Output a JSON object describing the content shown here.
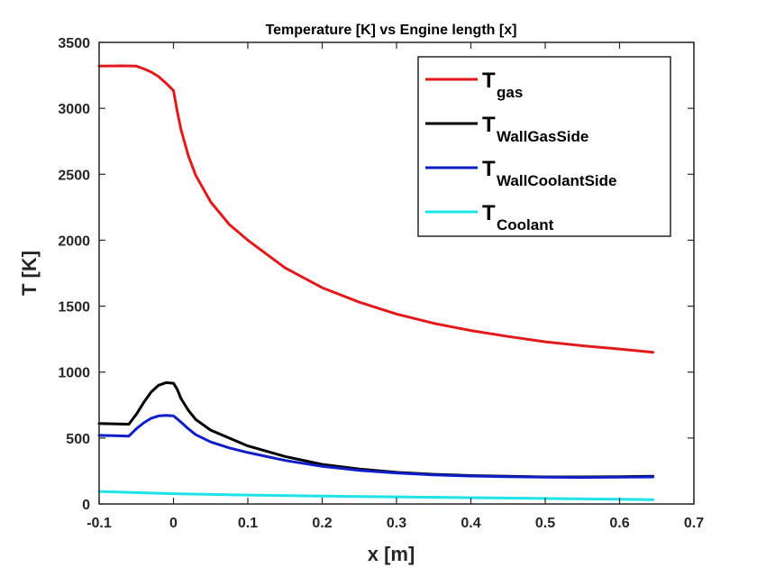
{
  "chart_data": {
    "type": "line",
    "title": "Temperature [K] vs Engine length [x]",
    "xlabel": "x [m]",
    "ylabel": "T [K]",
    "xlim": [
      -0.1,
      0.7
    ],
    "ylim": [
      0,
      3500
    ],
    "xticks": [
      -0.1,
      0,
      0.1,
      0.2,
      0.3,
      0.4,
      0.5,
      0.6,
      0.7
    ],
    "yticks": [
      0,
      500,
      1000,
      1500,
      2000,
      2500,
      3000,
      3500
    ],
    "xtick_labels": [
      "-0.1",
      "0",
      "0.1",
      "0.2",
      "0.3",
      "0.4",
      "0.5",
      "0.6",
      "0.7"
    ],
    "ytick_labels": [
      "0",
      "500",
      "1000",
      "1500",
      "2000",
      "2500",
      "3000",
      "3500"
    ],
    "grid": false,
    "legend_position": "top-right",
    "series": [
      {
        "name": "T",
        "subscript": "gas",
        "color": "#e31a1c",
        "x": [
          -0.1,
          -0.07,
          -0.05,
          -0.04,
          -0.03,
          -0.02,
          -0.01,
          0,
          0.005,
          0.01,
          0.02,
          0.03,
          0.05,
          0.075,
          0.1,
          0.15,
          0.2,
          0.25,
          0.3,
          0.35,
          0.4,
          0.45,
          0.5,
          0.55,
          0.6,
          0.645
        ],
        "y": [
          3320,
          3322,
          3320,
          3300,
          3275,
          3240,
          3190,
          3135,
          2980,
          2840,
          2640,
          2490,
          2290,
          2120,
          2000,
          1790,
          1640,
          1530,
          1440,
          1370,
          1315,
          1270,
          1230,
          1200,
          1175,
          1150
        ]
      },
      {
        "name": "T",
        "subscript": "WallGasSide",
        "color": "#000000",
        "x": [
          -0.1,
          -0.08,
          -0.06,
          -0.05,
          -0.04,
          -0.03,
          -0.02,
          -0.01,
          0,
          0.005,
          0.01,
          0.02,
          0.03,
          0.05,
          0.075,
          0.1,
          0.15,
          0.2,
          0.25,
          0.3,
          0.35,
          0.4,
          0.45,
          0.5,
          0.55,
          0.6,
          0.645
        ],
        "y": [
          610,
          608,
          605,
          680,
          770,
          850,
          900,
          920,
          915,
          870,
          800,
          710,
          640,
          560,
          500,
          440,
          360,
          300,
          265,
          240,
          225,
          215,
          210,
          205,
          205,
          207,
          210
        ]
      },
      {
        "name": "T",
        "subscript": "WallCoolantSide",
        "color": "#0f1fc8",
        "x": [
          -0.1,
          -0.08,
          -0.06,
          -0.05,
          -0.04,
          -0.03,
          -0.02,
          -0.01,
          0,
          0.005,
          0.01,
          0.02,
          0.03,
          0.05,
          0.075,
          0.1,
          0.15,
          0.2,
          0.25,
          0.3,
          0.35,
          0.4,
          0.45,
          0.5,
          0.55,
          0.6,
          0.645
        ],
        "y": [
          520,
          518,
          515,
          570,
          615,
          650,
          668,
          672,
          668,
          645,
          620,
          570,
          525,
          470,
          425,
          390,
          330,
          285,
          255,
          235,
          220,
          212,
          207,
          203,
          202,
          203,
          205
        ]
      },
      {
        "name": "T",
        "subscript": "Coolant",
        "color": "#1ee3e8",
        "x": [
          -0.1,
          0,
          0.1,
          0.2,
          0.3,
          0.4,
          0.5,
          0.6,
          0.645
        ],
        "y": [
          95,
          78,
          68,
          60,
          54,
          48,
          42,
          36,
          33
        ]
      }
    ]
  }
}
